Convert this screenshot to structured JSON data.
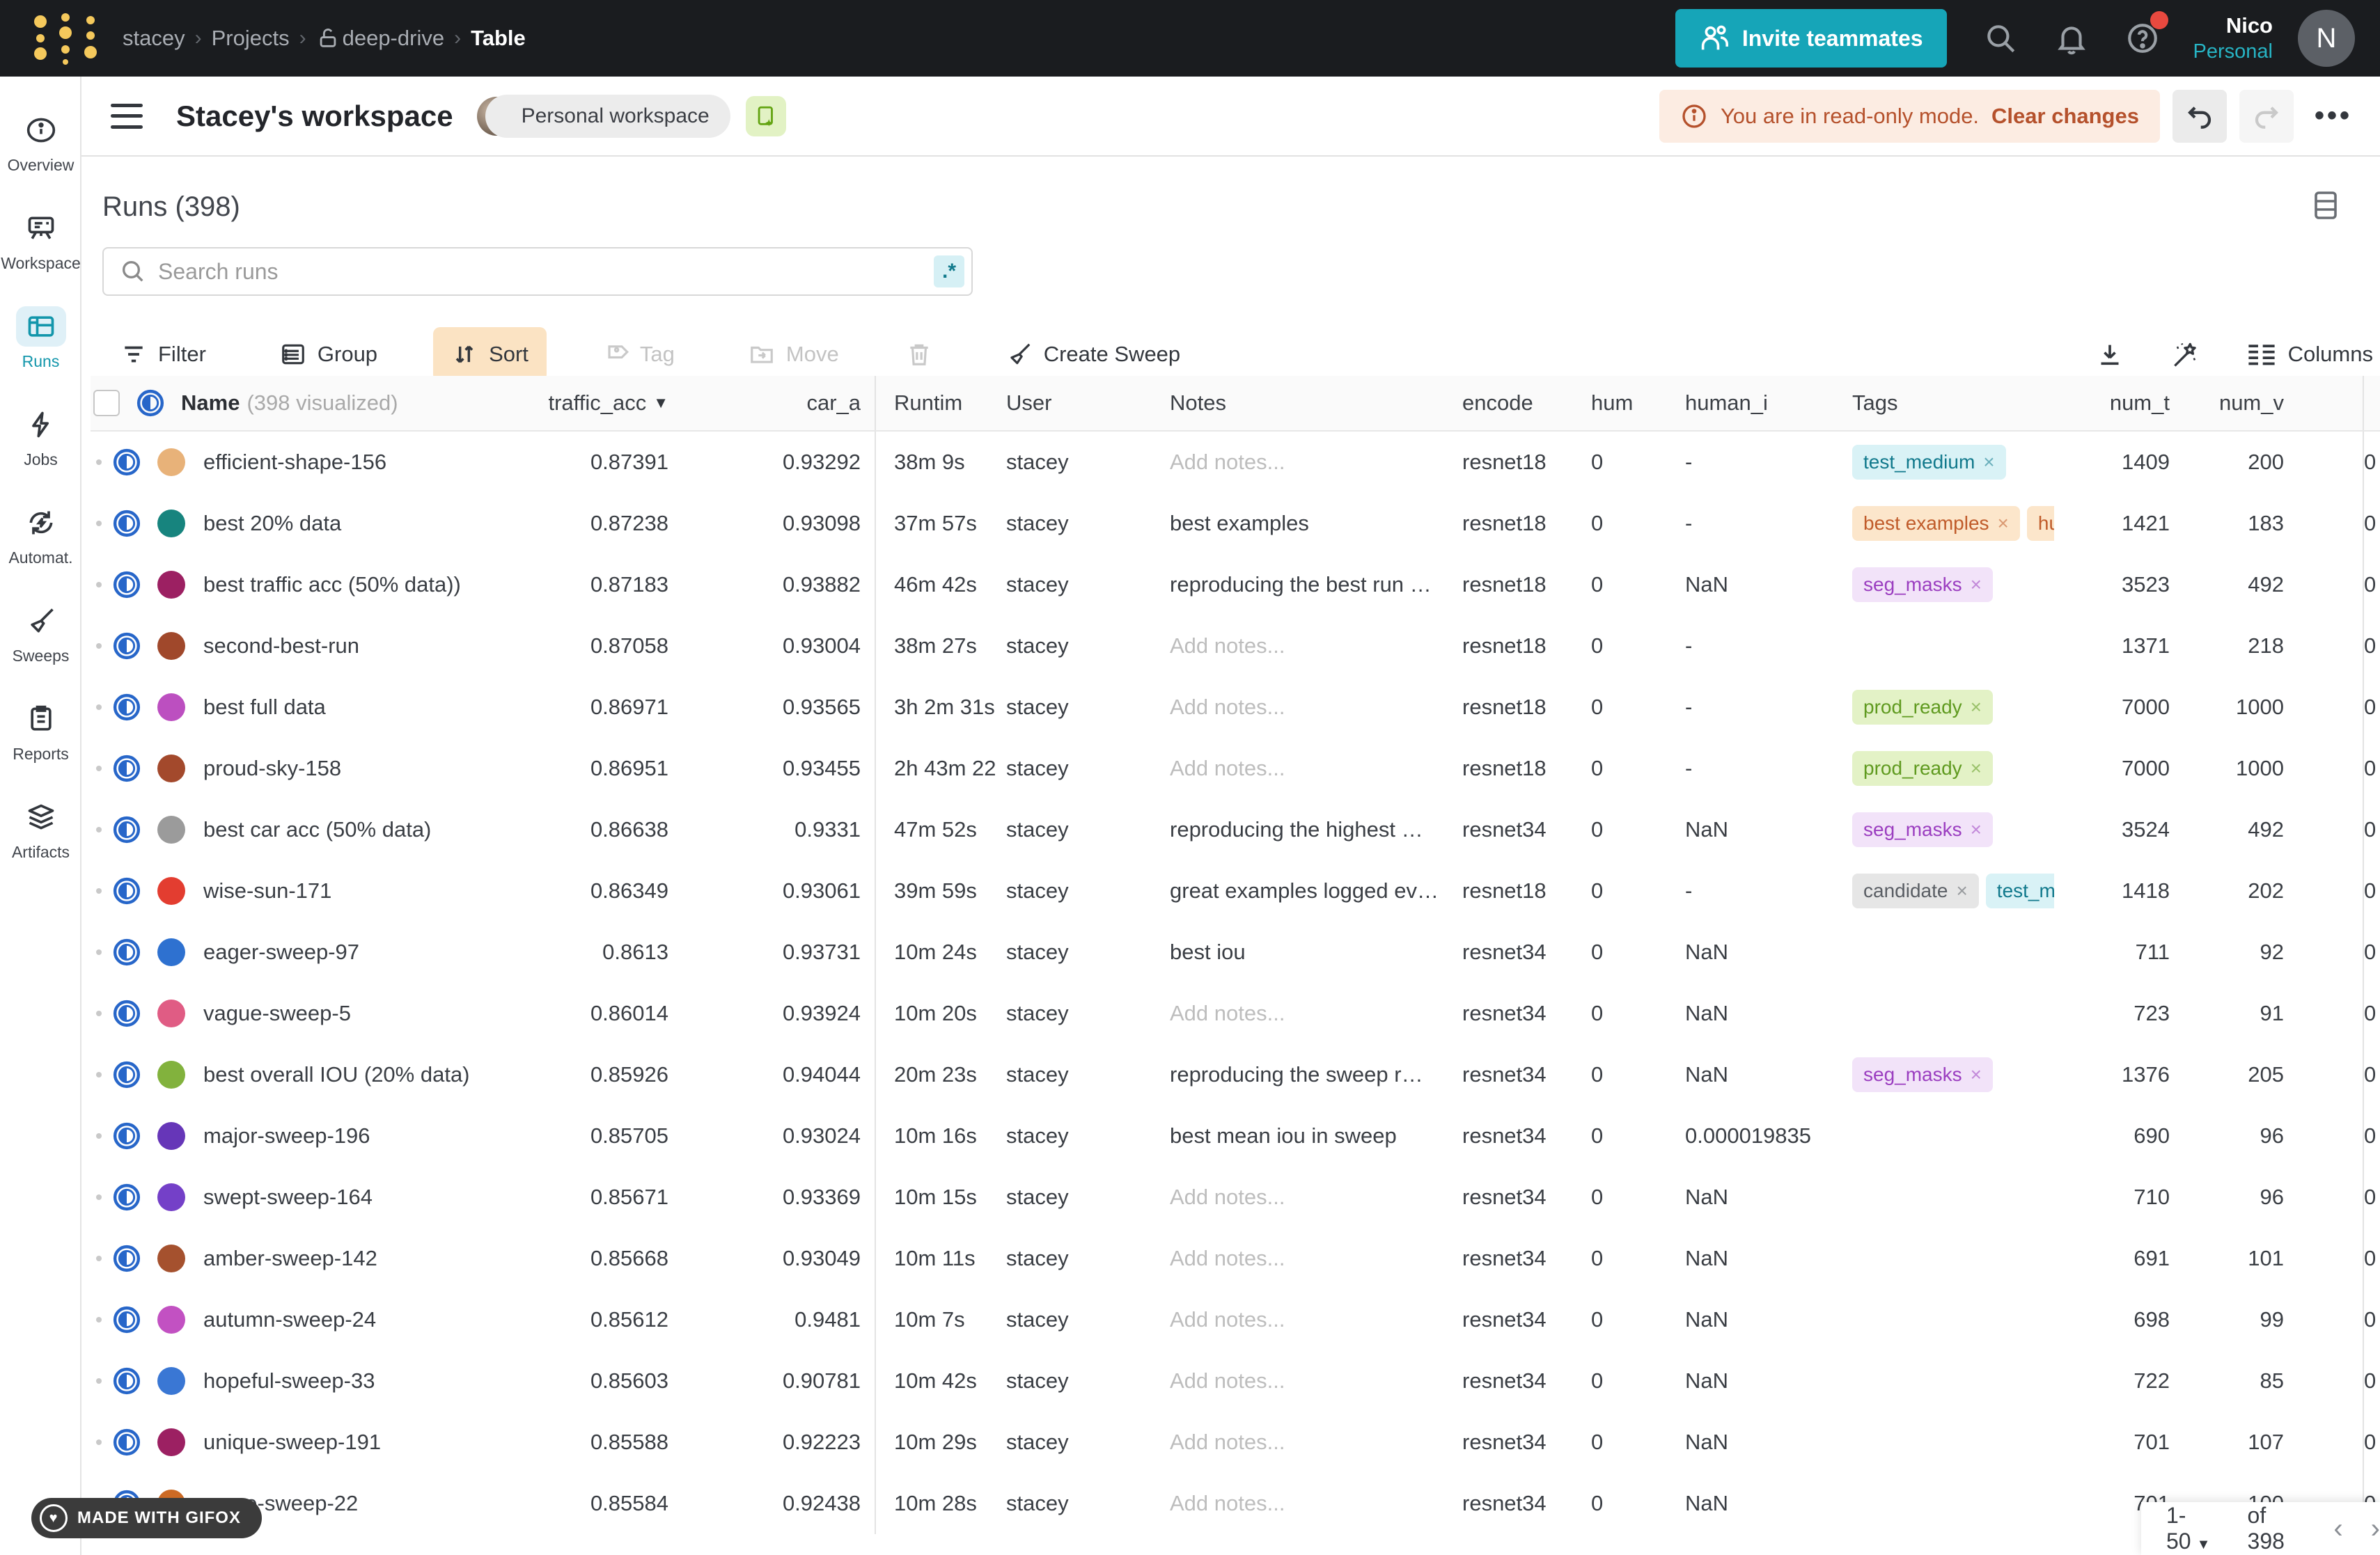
{
  "topnav": {
    "breadcrumb": [
      "stacey",
      "Projects",
      "deep-drive",
      "Table"
    ],
    "invite_label": "Invite teammates",
    "user_name": "Nico",
    "user_org": "Personal",
    "avatar_initial": "N",
    "accent_teal": "#16a5b8"
  },
  "header": {
    "title": "Stacey's workspace",
    "workspace_pill": "Personal workspace",
    "readonly_text": "You are in read-only mode.",
    "readonly_action": "Clear changes",
    "readonly_color": "#b5512c"
  },
  "sidebar": {
    "items": [
      {
        "label": "Overview",
        "active": false
      },
      {
        "label": "Workspace",
        "active": false
      },
      {
        "label": "Runs",
        "active": true
      },
      {
        "label": "Jobs",
        "active": false
      },
      {
        "label": "Automat.",
        "active": false
      },
      {
        "label": "Sweeps",
        "active": false
      },
      {
        "label": "Reports",
        "active": false
      },
      {
        "label": "Artifacts",
        "active": false
      }
    ]
  },
  "runs_panel": {
    "title": "Runs (398)",
    "search_placeholder": "Search runs",
    "regex_label": ".*",
    "toolbar": {
      "filter": "Filter",
      "group": "Group",
      "sort": "Sort",
      "tag": "Tag",
      "move": "Move",
      "create_sweep": "Create Sweep",
      "columns": "Columns"
    }
  },
  "table": {
    "headers": {
      "name": "Name",
      "name_dim": "(398 visualized)",
      "traffic_acc": "traffic_acc",
      "car_a": "car_a",
      "runtime": "Runtim",
      "user": "User",
      "notes": "Notes",
      "encoder": "encode",
      "hum": "hum",
      "human_id": "human_i",
      "tags": "Tags",
      "num_t": "num_t",
      "num_v": "num_v"
    },
    "rows": [
      {
        "name": "efficient-shape-156",
        "color": "#e8b279",
        "traffic_acc": "0.87391",
        "car_a": "0.93292",
        "runtime": "38m 9s",
        "user": "stacey",
        "notes": "Add notes...",
        "notes_placeholder": true,
        "encoder": "resnet18",
        "hum": "0",
        "human_id": "-",
        "tags": [
          {
            "label": "test_medium",
            "color": "cyan"
          }
        ],
        "num_t": "1409",
        "num_v": "200",
        "sliver": "0"
      },
      {
        "name": "best 20% data",
        "color": "#17847e",
        "traffic_acc": "0.87238",
        "car_a": "0.93098",
        "runtime": "37m 57s",
        "user": "stacey",
        "notes": "best examples",
        "notes_placeholder": false,
        "encoder": "resnet18",
        "hum": "0",
        "human_id": "-",
        "tags": [
          {
            "label": "best examples",
            "color": "orange"
          },
          {
            "label": "humans",
            "color": "orange"
          }
        ],
        "num_t": "1421",
        "num_v": "183",
        "sliver": "0"
      },
      {
        "name": "best traffic acc (50% data))",
        "color": "#9c2062",
        "traffic_acc": "0.87183",
        "car_a": "0.93882",
        "runtime": "46m 42s",
        "user": "stacey",
        "notes": "reproducing the best run …",
        "notes_placeholder": false,
        "encoder": "resnet18",
        "hum": "0",
        "human_id": "NaN",
        "tags": [
          {
            "label": "seg_masks",
            "color": "purple"
          }
        ],
        "num_t": "3523",
        "num_v": "492",
        "sliver": "0"
      },
      {
        "name": "second-best-run",
        "color": "#a0482b",
        "traffic_acc": "0.87058",
        "car_a": "0.93004",
        "runtime": "38m 27s",
        "user": "stacey",
        "notes": "Add notes...",
        "notes_placeholder": true,
        "encoder": "resnet18",
        "hum": "0",
        "human_id": "-",
        "tags": [],
        "num_t": "1371",
        "num_v": "218",
        "sliver": "0"
      },
      {
        "name": "best full data",
        "color": "#bc4fc0",
        "traffic_acc": "0.86971",
        "car_a": "0.93565",
        "runtime": "3h 2m 31s",
        "user": "stacey",
        "notes": "Add notes...",
        "notes_placeholder": true,
        "encoder": "resnet18",
        "hum": "0",
        "human_id": "-",
        "tags": [
          {
            "label": "prod_ready",
            "color": "green"
          }
        ],
        "num_t": "7000",
        "num_v": "1000",
        "sliver": "0"
      },
      {
        "name": "proud-sky-158",
        "color": "#a3492c",
        "traffic_acc": "0.86951",
        "car_a": "0.93455",
        "runtime": "2h 43m 22",
        "user": "stacey",
        "notes": "Add notes...",
        "notes_placeholder": true,
        "encoder": "resnet18",
        "hum": "0",
        "human_id": "-",
        "tags": [
          {
            "label": "prod_ready",
            "color": "green"
          }
        ],
        "num_t": "7000",
        "num_v": "1000",
        "sliver": "0"
      },
      {
        "name": "best car acc (50% data)",
        "color": "#9b9b9b",
        "traffic_acc": "0.86638",
        "car_a": "0.9331",
        "runtime": "47m 52s",
        "user": "stacey",
        "notes": "reproducing the highest …",
        "notes_placeholder": false,
        "encoder": "resnet34",
        "hum": "0",
        "human_id": "NaN",
        "tags": [
          {
            "label": "seg_masks",
            "color": "purple"
          }
        ],
        "num_t": "3524",
        "num_v": "492",
        "sliver": "0"
      },
      {
        "name": "wise-sun-171",
        "color": "#e33d30",
        "traffic_acc": "0.86349",
        "car_a": "0.93061",
        "runtime": "39m 59s",
        "user": "stacey",
        "notes": "great examples logged ev…",
        "notes_placeholder": false,
        "encoder": "resnet18",
        "hum": "0",
        "human_id": "-",
        "tags": [
          {
            "label": "candidate",
            "color": "gray"
          },
          {
            "label": "test_medium",
            "color": "cyan"
          }
        ],
        "num_t": "1418",
        "num_v": "202",
        "sliver": "0"
      },
      {
        "name": "eager-sweep-97",
        "color": "#2e71d0",
        "traffic_acc": "0.8613",
        "car_a": "0.93731",
        "runtime": "10m 24s",
        "user": "stacey",
        "notes": "best iou",
        "notes_placeholder": false,
        "encoder": "resnet34",
        "hum": "0",
        "human_id": "NaN",
        "tags": [],
        "num_t": "711",
        "num_v": "92",
        "sliver": "0"
      },
      {
        "name": "vague-sweep-5",
        "color": "#e05c84",
        "traffic_acc": "0.86014",
        "car_a": "0.93924",
        "runtime": "10m 20s",
        "user": "stacey",
        "notes": "Add notes...",
        "notes_placeholder": true,
        "encoder": "resnet34",
        "hum": "0",
        "human_id": "NaN",
        "tags": [],
        "num_t": "723",
        "num_v": "91",
        "sliver": "0"
      },
      {
        "name": "best overall IOU (20% data)",
        "color": "#82b23d",
        "traffic_acc": "0.85926",
        "car_a": "0.94044",
        "runtime": "20m 23s",
        "user": "stacey",
        "notes": "reproducing the sweep r…",
        "notes_placeholder": false,
        "encoder": "resnet34",
        "hum": "0",
        "human_id": "NaN",
        "tags": [
          {
            "label": "seg_masks",
            "color": "purple"
          }
        ],
        "num_t": "1376",
        "num_v": "205",
        "sliver": "0"
      },
      {
        "name": "major-sweep-196",
        "color": "#6636b8",
        "traffic_acc": "0.85705",
        "car_a": "0.93024",
        "runtime": "10m 16s",
        "user": "stacey",
        "notes": "best mean iou in sweep",
        "notes_placeholder": false,
        "encoder": "resnet34",
        "hum": "0",
        "human_id": "0.000019835",
        "tags": [],
        "num_t": "690",
        "num_v": "96",
        "sliver": "0"
      },
      {
        "name": "swept-sweep-164",
        "color": "#7440c8",
        "traffic_acc": "0.85671",
        "car_a": "0.93369",
        "runtime": "10m 15s",
        "user": "stacey",
        "notes": "Add notes...",
        "notes_placeholder": true,
        "encoder": "resnet34",
        "hum": "0",
        "human_id": "NaN",
        "tags": [],
        "num_t": "710",
        "num_v": "96",
        "sliver": "0"
      },
      {
        "name": "amber-sweep-142",
        "color": "#a5512e",
        "traffic_acc": "0.85668",
        "car_a": "0.93049",
        "runtime": "10m 11s",
        "user": "stacey",
        "notes": "Add notes...",
        "notes_placeholder": true,
        "encoder": "resnet34",
        "hum": "0",
        "human_id": "NaN",
        "tags": [],
        "num_t": "691",
        "num_v": "101",
        "sliver": "0"
      },
      {
        "name": "autumn-sweep-24",
        "color": "#c251c2",
        "traffic_acc": "0.85612",
        "car_a": "0.9481",
        "runtime": "10m 7s",
        "user": "stacey",
        "notes": "Add notes...",
        "notes_placeholder": true,
        "encoder": "resnet34",
        "hum": "0",
        "human_id": "NaN",
        "tags": [],
        "num_t": "698",
        "num_v": "99",
        "sliver": "0"
      },
      {
        "name": "hopeful-sweep-33",
        "color": "#3a77d4",
        "traffic_acc": "0.85603",
        "car_a": "0.90781",
        "runtime": "10m 42s",
        "user": "stacey",
        "notes": "Add notes...",
        "notes_placeholder": true,
        "encoder": "resnet34",
        "hum": "0",
        "human_id": "NaN",
        "tags": [],
        "num_t": "722",
        "num_v": "85",
        "sliver": "0"
      },
      {
        "name": "unique-sweep-191",
        "color": "#9c2062",
        "traffic_acc": "0.85588",
        "car_a": "0.92223",
        "runtime": "10m 29s",
        "user": "stacey",
        "notes": "Add notes...",
        "notes_placeholder": true,
        "encoder": "resnet34",
        "hum": "0",
        "human_id": "NaN",
        "tags": [],
        "num_t": "701",
        "num_v": "107",
        "sliver": "0"
      },
      {
        "name": "azure-sweep-22",
        "color": "#cc6a25",
        "traffic_acc": "0.85584",
        "car_a": "0.92438",
        "runtime": "10m 28s",
        "user": "stacey",
        "notes": "Add notes...",
        "notes_placeholder": true,
        "encoder": "resnet34",
        "hum": "0",
        "human_id": "NaN",
        "tags": [],
        "num_t": "701",
        "num_v": "100",
        "sliver": "0"
      }
    ]
  },
  "pagination": {
    "range": "1-50",
    "of": "of 398",
    "prev": "‹",
    "next": "›"
  },
  "badge": {
    "label": "MADE WITH GIFOX"
  }
}
